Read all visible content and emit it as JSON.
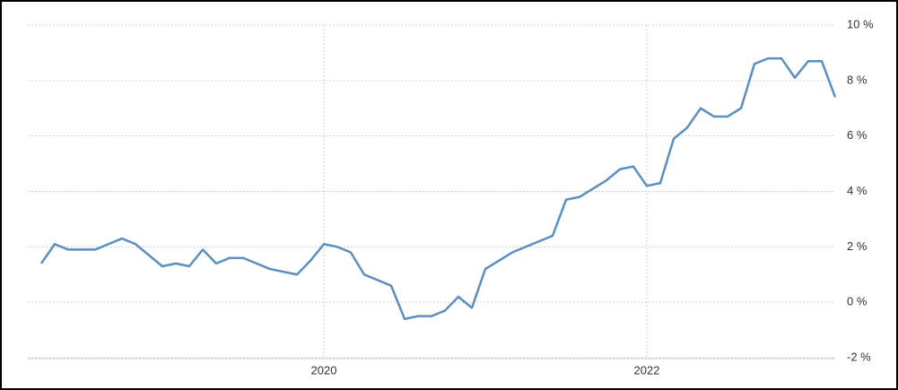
{
  "chart_data": {
    "type": "line",
    "categories": [
      null,
      null,
      null,
      null,
      null,
      null,
      null,
      null,
      null,
      null,
      null,
      null,
      null,
      null,
      null,
      null,
      null,
      null,
      null,
      null,
      null,
      "2020",
      null,
      null,
      null,
      null,
      null,
      null,
      null,
      null,
      null,
      null,
      null,
      null,
      null,
      null,
      null,
      null,
      null,
      null,
      null,
      null,
      null,
      null,
      null,
      "2022",
      null,
      null,
      null,
      null,
      null,
      null,
      null,
      null,
      null,
      null,
      null,
      null,
      null,
      null
    ],
    "series": [
      {
        "color": "#5b8fc2",
        "values": [
          1.4,
          2.1,
          1.9,
          1.9,
          1.9,
          2.1,
          2.3,
          2.1,
          1.7,
          1.3,
          1.4,
          1.3,
          1.9,
          1.4,
          1.6,
          1.6,
          1.4,
          1.2,
          1.1,
          1.0,
          1.5,
          2.1,
          2.0,
          1.8,
          1.0,
          0.8,
          0.6,
          -0.6,
          -0.5,
          -0.5,
          -0.3,
          0.2,
          -0.2,
          1.2,
          1.5,
          1.8,
          2.0,
          2.2,
          2.4,
          3.7,
          3.8,
          4.1,
          4.4,
          4.8,
          4.9,
          4.2,
          4.3,
          5.9,
          6.3,
          7.0,
          6.7,
          6.7,
          7.0,
          8.6,
          8.8,
          8.8,
          8.1,
          8.7,
          8.7,
          7.4
        ]
      }
    ],
    "ylim": [
      -2,
      10
    ],
    "yticks": [
      {
        "value": -2,
        "label": "-2 %"
      },
      {
        "value": 0,
        "label": "0 %"
      },
      {
        "value": 2,
        "label": "2 %"
      },
      {
        "value": 4,
        "label": "4 %"
      },
      {
        "value": 6,
        "label": "6 %"
      },
      {
        "value": 8,
        "label": "8 %"
      },
      {
        "value": 10,
        "label": "10 %"
      }
    ],
    "grid": true
  }
}
